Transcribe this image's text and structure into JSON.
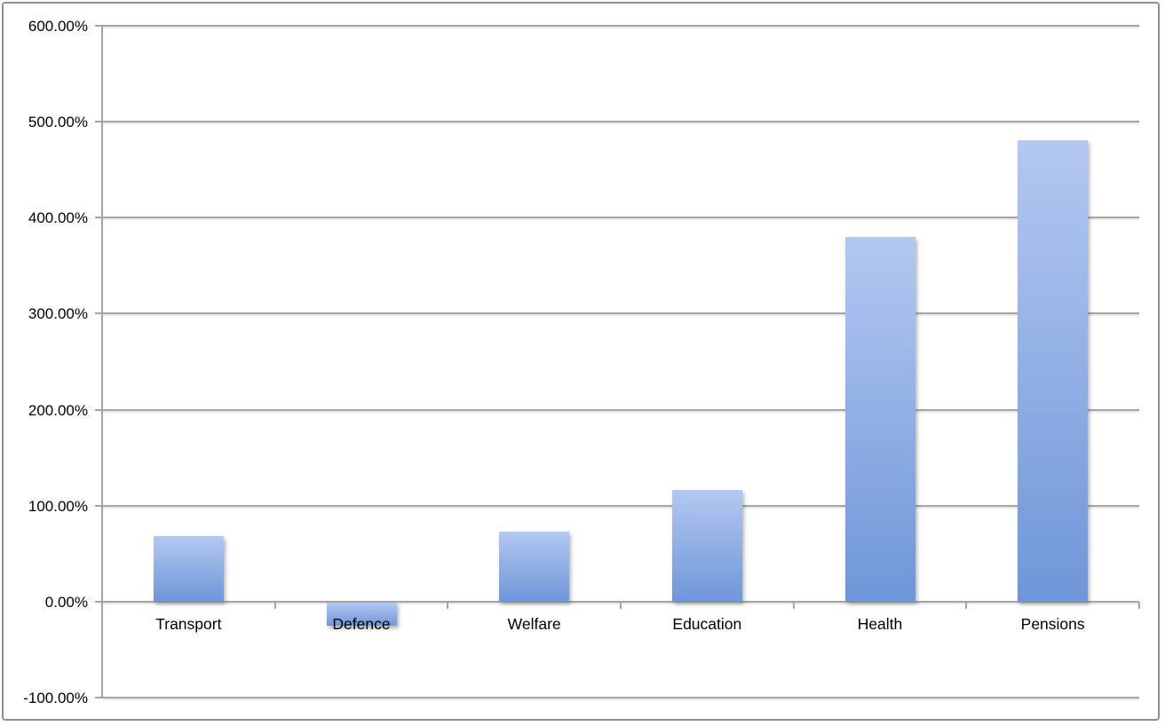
{
  "chart_data": {
    "type": "bar",
    "title": "",
    "xlabel": "",
    "ylabel": "",
    "categories": [
      "Transport",
      "Defence",
      "Welfare",
      "Education",
      "Health",
      "Pensions"
    ],
    "values": [
      68,
      -25,
      73,
      116,
      380,
      481
    ],
    "value_format": "percent",
    "ylim": [
      -100,
      600
    ],
    "ytick_step": 100,
    "ytick_labels": [
      "600.00%",
      "500.00%",
      "400.00%",
      "300.00%",
      "200.00%",
      "100.00%",
      "0.00%",
      "-100.00%"
    ],
    "grid": true,
    "legend": "none",
    "colors": {
      "bar_gradient_top": "#b3c8f1",
      "bar_gradient_bottom": "#6f96d8",
      "gridline": "#a4a4a4",
      "axis": "#a4a4a4",
      "frame_border": "#919191",
      "text": "#000000",
      "background": "#ffffff"
    }
  }
}
